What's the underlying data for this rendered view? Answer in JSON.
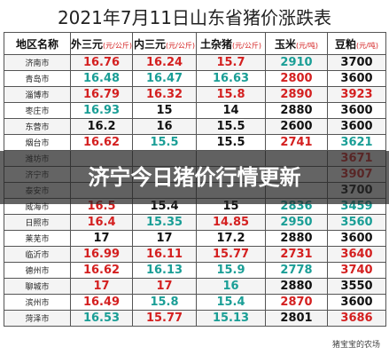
{
  "title": "2021年7月11日山东省猪价涨跌表",
  "table": {
    "header": [
      {
        "name": "地区名称",
        "unit": null
      },
      {
        "name": "外三元",
        "unit": "(元/公斤)"
      },
      {
        "name": "内三元",
        "unit": "(元/公斤)"
      },
      {
        "name": "土杂猪",
        "unit": "(元/公斤)"
      },
      {
        "name": "玉米",
        "unit": "(元/吨)"
      },
      {
        "name": "豆粕",
        "unit": "(元/吨)"
      }
    ],
    "rows": [
      [
        "济南市",
        "16.76",
        "16.24",
        "15.7",
        "2910",
        "3700"
      ],
      [
        "青岛市",
        "16.48",
        "16.47",
        "16.63",
        "2800",
        "3600"
      ],
      [
        "淄博市",
        "16.79",
        "16.32",
        "15.8",
        "2890",
        "3923"
      ],
      [
        "枣庄市",
        "16.93",
        "15",
        "14",
        "2880",
        "3600"
      ],
      [
        "东营市",
        "16.2",
        "16",
        "15.5",
        "2600",
        "3600"
      ],
      [
        "烟台市",
        "16.62",
        "15.5",
        "15.5",
        "2741",
        "3621"
      ],
      [
        "潍坊市",
        null,
        null,
        null,
        null,
        "3671"
      ],
      [
        "济宁市",
        null,
        null,
        null,
        null,
        "3907"
      ],
      [
        "泰安市",
        null,
        null,
        null,
        null,
        "3700"
      ],
      [
        "威海市",
        "16.5",
        "15.4",
        "15",
        "2836",
        "3459"
      ],
      [
        "日照市",
        "16.4",
        "15.35",
        "14.85",
        "2950",
        "3560"
      ],
      [
        "莱芜市",
        "17",
        "17",
        "17.2",
        "2880",
        "3600"
      ],
      [
        "临沂市",
        "16.99",
        "16.11",
        "15.77",
        "2731",
        "3640"
      ],
      [
        "德州市",
        "16.62",
        "16.13",
        "15.9",
        "2778",
        "3740"
      ],
      [
        "聊城市",
        "17",
        "17",
        "16",
        "2880",
        "3550"
      ],
      [
        "滨州市",
        "16.49",
        "15.8",
        "15.4",
        "2870",
        "3600"
      ],
      [
        "菏泽市",
        "16.53",
        "15.77",
        "15.13",
        "2801",
        "3686"
      ]
    ],
    "colors": [
      [
        "#d42020",
        "#d42020",
        "#d42020",
        "#1a9e96",
        "#111111"
      ],
      [
        "#1a9e96",
        "#1a9e96",
        "#1a9e96",
        "#d42020",
        "#111111"
      ],
      [
        "#d42020",
        "#d42020",
        "#d42020",
        "#d42020",
        "#d42020"
      ],
      [
        "#1a9e96",
        "#111111",
        "#111111",
        "#111111",
        "#111111"
      ],
      [
        "#111111",
        "#111111",
        "#111111",
        "#111111",
        "#111111"
      ],
      [
        "#d42020",
        "#1a9e96",
        "#111111",
        "#d42020",
        "#1a9e96"
      ],
      [
        null,
        null,
        null,
        null,
        "#d42020"
      ],
      [
        null,
        null,
        null,
        null,
        "#d42020"
      ],
      [
        null,
        null,
        null,
        null,
        "#111111"
      ],
      [
        "#d42020",
        "#111111",
        "#111111",
        "#1a9e96",
        "#1a9e96"
      ],
      [
        "#d42020",
        "#1a9e96",
        "#d42020",
        "#1a9e96",
        "#1a9e96"
      ],
      [
        "#111111",
        "#111111",
        "#111111",
        "#111111",
        "#111111"
      ],
      [
        "#d42020",
        "#d42020",
        "#d42020",
        "#d42020",
        "#d42020"
      ],
      [
        "#d42020",
        "#1a9e96",
        "#1a9e96",
        "#1a9e96",
        "#d42020"
      ],
      [
        "#d42020",
        "#d42020",
        "#1a9e96",
        "#111111",
        "#111111"
      ],
      [
        "#d42020",
        "#1a9e96",
        "#1a9e96",
        "#d42020",
        "#111111"
      ],
      [
        "#1a9e96",
        "#d42020",
        "#1a9e96",
        "#111111",
        "#d42020"
      ]
    ]
  },
  "banner": "济宁今日猪价行情更新",
  "watermark": "猪宝宝的农场"
}
